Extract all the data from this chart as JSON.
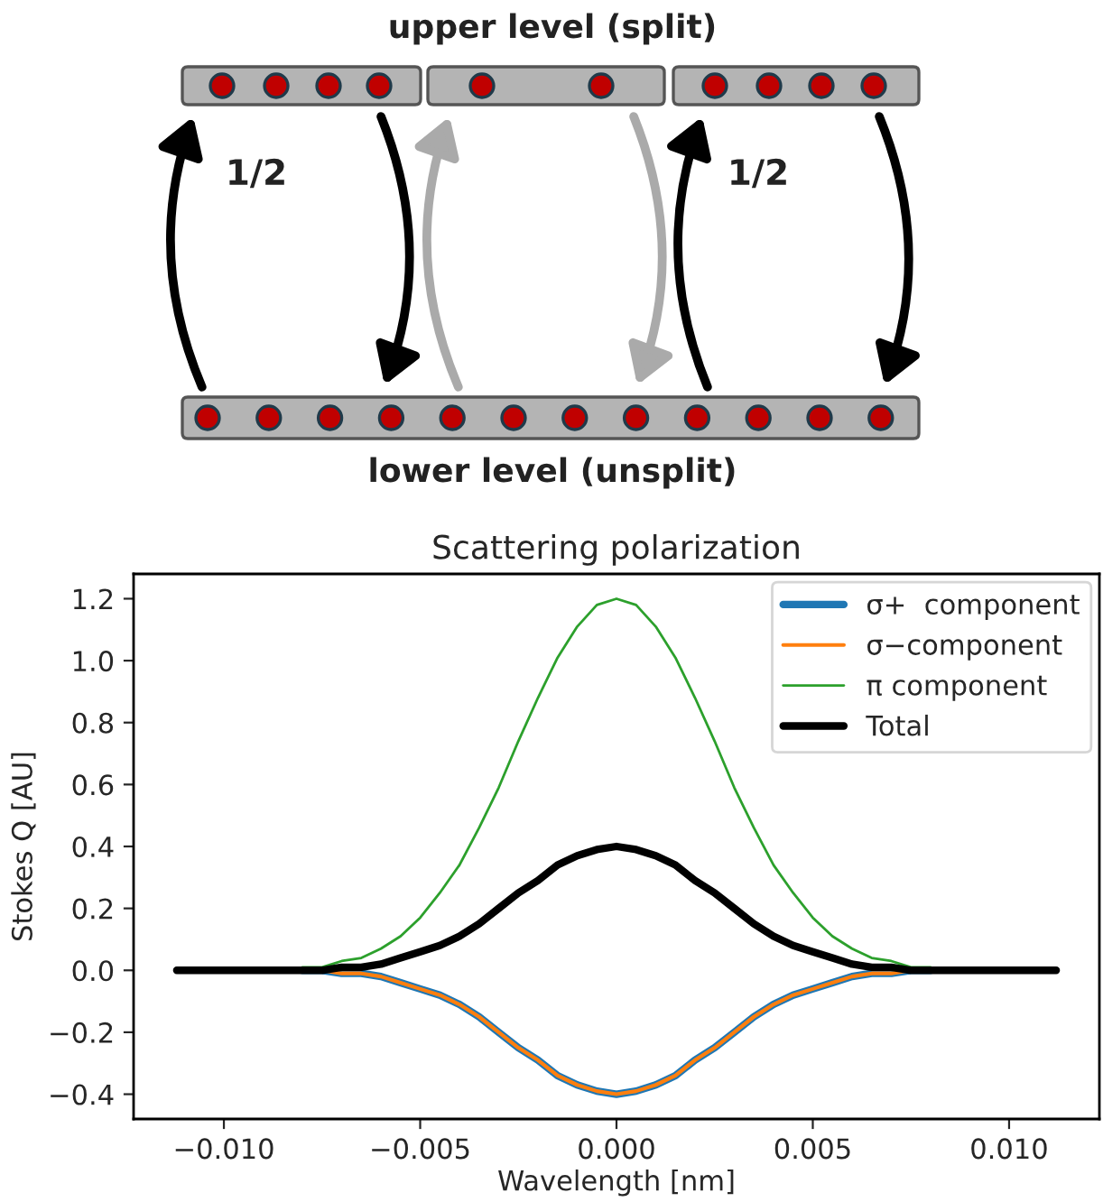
{
  "chart_data": {
    "type": "line",
    "title": "Scattering polarization",
    "xlabel": "Wavelength [nm]",
    "ylabel": "Stokes Q [AU]",
    "annotations": [
      "upper level (split)",
      "lower level (unsplit)",
      "1/2",
      "1/2"
    ],
    "x": [
      -0.0112,
      -0.01,
      -0.009,
      -0.008,
      -0.0075,
      -0.007,
      -0.0065,
      -0.006,
      -0.0055,
      -0.005,
      -0.0045,
      -0.004,
      -0.0035,
      -0.003,
      -0.0025,
      -0.002,
      -0.0015,
      -0.001,
      -0.0005,
      0,
      0.0005,
      0.001,
      0.0015,
      0.002,
      0.0025,
      0.003,
      0.0035,
      0.004,
      0.0045,
      0.005,
      0.0055,
      0.006,
      0.0065,
      0.007,
      0.0075,
      0.008,
      0.009,
      0.01,
      0.0112
    ],
    "series": [
      {
        "name": "σ+  component",
        "color": "#1f77b4",
        "values": [
          null,
          null,
          null,
          0,
          0,
          -0.01,
          -0.01,
          -0.02,
          -0.04,
          -0.06,
          -0.08,
          -0.11,
          -0.15,
          -0.2,
          -0.25,
          -0.29,
          -0.34,
          -0.37,
          -0.39,
          -0.4,
          -0.39,
          -0.37,
          -0.34,
          -0.29,
          -0.25,
          -0.2,
          -0.15,
          -0.11,
          -0.08,
          -0.06,
          -0.04,
          -0.02,
          -0.01,
          -0.01,
          0,
          0,
          null,
          null,
          null
        ]
      },
      {
        "name": "σ−component",
        "color": "#ff7f0e",
        "values": [
          null,
          null,
          null,
          0,
          0,
          -0.01,
          -0.01,
          -0.02,
          -0.04,
          -0.06,
          -0.08,
          -0.11,
          -0.15,
          -0.2,
          -0.25,
          -0.29,
          -0.34,
          -0.37,
          -0.39,
          -0.4,
          -0.39,
          -0.37,
          -0.34,
          -0.29,
          -0.25,
          -0.2,
          -0.15,
          -0.11,
          -0.08,
          -0.06,
          -0.04,
          -0.02,
          -0.01,
          -0.01,
          0,
          0,
          null,
          null,
          null
        ]
      },
      {
        "name": "π component",
        "color": "#2ca02c",
        "values": [
          null,
          null,
          null,
          0.01,
          0.01,
          0.03,
          0.04,
          0.07,
          0.11,
          0.17,
          0.25,
          0.34,
          0.46,
          0.59,
          0.74,
          0.88,
          1.01,
          1.11,
          1.18,
          1.2,
          1.18,
          1.11,
          1.01,
          0.88,
          0.74,
          0.59,
          0.46,
          0.34,
          0.25,
          0.17,
          0.11,
          0.07,
          0.04,
          0.03,
          0.01,
          0.01,
          null,
          null,
          null
        ]
      },
      {
        "name": "Total",
        "color": "#000000",
        "values": [
          0,
          0,
          0,
          0,
          0,
          0.01,
          0.01,
          0.02,
          0.04,
          0.06,
          0.08,
          0.11,
          0.15,
          0.2,
          0.25,
          0.29,
          0.34,
          0.37,
          0.39,
          0.4,
          0.39,
          0.37,
          0.34,
          0.29,
          0.25,
          0.2,
          0.15,
          0.11,
          0.08,
          0.06,
          0.04,
          0.02,
          0.01,
          0.01,
          0,
          0,
          0,
          0,
          0
        ]
      }
    ],
    "xlim": [
      -0.0123,
      0.0123
    ],
    "ylim": [
      -0.48,
      1.28
    ],
    "xticks": [
      {
        "value": -0.01,
        "label": "−0.010"
      },
      {
        "value": -0.005,
        "label": "−0.005"
      },
      {
        "value": 0,
        "label": "0.000"
      },
      {
        "value": 0.005,
        "label": "0.005"
      },
      {
        "value": 0.01,
        "label": "0.010"
      }
    ],
    "yticks": [
      {
        "value": -0.4,
        "label": "−0.4"
      },
      {
        "value": -0.2,
        "label": "−0.2"
      },
      {
        "value": 0,
        "label": "0.0"
      },
      {
        "value": 0.2,
        "label": "0.2"
      },
      {
        "value": 0.4,
        "label": "0.4"
      },
      {
        "value": 0.6,
        "label": "0.6"
      },
      {
        "value": 0.8,
        "label": "0.8"
      },
      {
        "value": 1.0,
        "label": "1.0"
      },
      {
        "value": 1.2,
        "label": "1.2"
      }
    ],
    "legend": "top right",
    "grid": false
  }
}
